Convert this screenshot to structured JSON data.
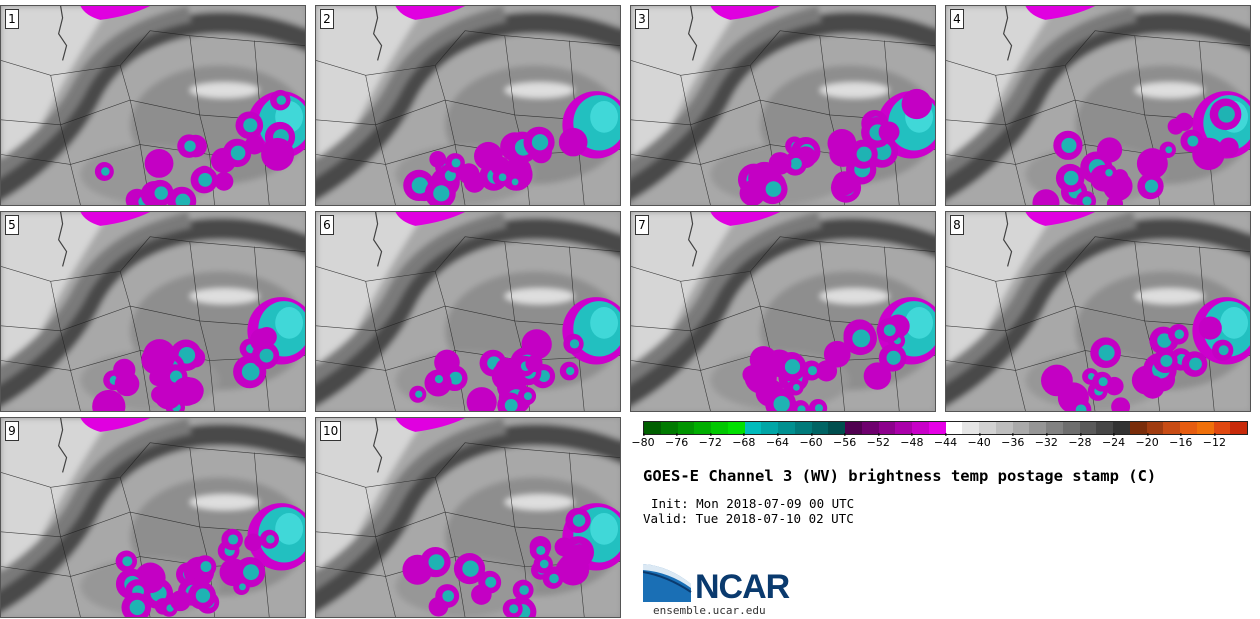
{
  "panels": [
    {
      "label": "1"
    },
    {
      "label": "2"
    },
    {
      "label": "3"
    },
    {
      "label": "4"
    },
    {
      "label": "5"
    },
    {
      "label": "6"
    },
    {
      "label": "7"
    },
    {
      "label": "8"
    },
    {
      "label": "9"
    },
    {
      "label": "10"
    }
  ],
  "colorbar": {
    "colors": [
      "#005f00",
      "#007a00",
      "#009400",
      "#00ae00",
      "#00c800",
      "#00e000",
      "#00bcbc",
      "#00a6a6",
      "#009090",
      "#007a7a",
      "#006464",
      "#004e4e",
      "#500050",
      "#6e006e",
      "#8c008c",
      "#aa00aa",
      "#c800c8",
      "#e600e6",
      "#ffffff",
      "#e6e6e6",
      "#d2d2d2",
      "#bebebe",
      "#aaaaaa",
      "#969696",
      "#828282",
      "#6e6e6e",
      "#5a5a5a",
      "#464646",
      "#323232",
      "#7a2d0a",
      "#a03c10",
      "#c84c14",
      "#e65c10",
      "#f0700a",
      "#e04810",
      "#c82a0a"
    ],
    "tick_labels": [
      "−80",
      "−76",
      "−72",
      "−68",
      "−64",
      "−60",
      "−56",
      "−52",
      "−48",
      "−44",
      "−40",
      "−36",
      "−32",
      "−28",
      "−24",
      "−20",
      "−16",
      "−12"
    ]
  },
  "title": "GOES-E Channel 3 (WV) brightness temp postage stamp (C)",
  "init": "Init: Mon 2018-07-09 00 UTC",
  "valid": "Valid: Tue 2018-07-10 02 UTC",
  "logo": {
    "text": "NCAR",
    "url": "ensemble.ucar.edu",
    "color": "#0a3a6e"
  }
}
